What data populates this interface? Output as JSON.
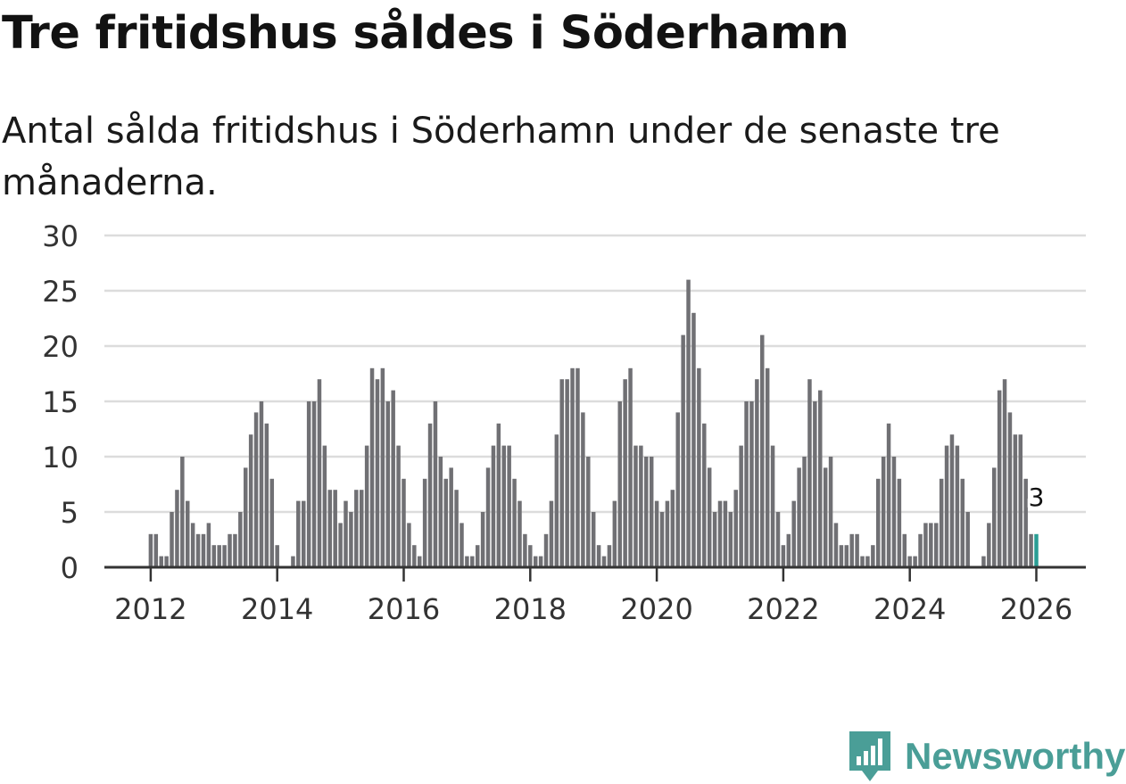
{
  "title": "Tre fritidshus såldes i Söderhamn",
  "subtitle": "Antal sålda fritidshus i Söderhamn under de senaste tre månaderna.",
  "brand": "Newsworthy",
  "colors": {
    "bar": "#707074",
    "highlight": "#2a9d94",
    "grid": "#dcdcdc",
    "axis": "#333333",
    "brand": "#4a9e97"
  },
  "chart_data": {
    "type": "bar",
    "title": "Tre fritidshus såldes i Söderhamn",
    "subtitle": "Antal sålda fritidshus i Söderhamn under de senaste tre månaderna.",
    "xlabel": "",
    "ylabel": "",
    "ylim": [
      0,
      30
    ],
    "yticks": [
      "0",
      "5",
      "10",
      "15",
      "20",
      "25",
      "30"
    ],
    "xticks": [
      "2012",
      "2014",
      "2016",
      "2018",
      "2020",
      "2022",
      "2024",
      "2026"
    ],
    "start": "2012-01",
    "values": [
      3,
      3,
      1,
      1,
      5,
      7,
      10,
      6,
      4,
      3,
      3,
      4,
      2,
      2,
      2,
      3,
      3,
      5,
      9,
      12,
      14,
      15,
      13,
      8,
      2,
      0,
      0,
      1,
      6,
      6,
      15,
      15,
      17,
      11,
      7,
      7,
      4,
      6,
      5,
      7,
      7,
      11,
      18,
      17,
      18,
      15,
      16,
      11,
      8,
      4,
      2,
      1,
      8,
      13,
      15,
      10,
      8,
      9,
      7,
      4,
      1,
      1,
      2,
      5,
      9,
      11,
      13,
      11,
      11,
      8,
      6,
      3,
      2,
      1,
      1,
      3,
      6,
      12,
      17,
      17,
      18,
      18,
      14,
      10,
      5,
      2,
      1,
      2,
      6,
      15,
      17,
      18,
      11,
      11,
      10,
      10,
      6,
      5,
      6,
      7,
      14,
      21,
      26,
      23,
      18,
      13,
      9,
      5,
      6,
      6,
      5,
      7,
      11,
      15,
      15,
      17,
      21,
      18,
      11,
      5,
      2,
      3,
      6,
      9,
      10,
      17,
      15,
      16,
      9,
      10,
      4,
      2,
      2,
      3,
      3,
      1,
      1,
      2,
      8,
      10,
      13,
      10,
      8,
      3,
      1,
      1,
      3,
      4,
      4,
      4,
      8,
      11,
      12,
      11,
      8,
      5,
      0,
      0,
      1,
      4,
      9,
      16,
      17,
      14,
      12,
      12,
      8,
      3,
      3
    ],
    "highlight_last": true,
    "annotation": {
      "label": "3",
      "value": 3
    }
  }
}
